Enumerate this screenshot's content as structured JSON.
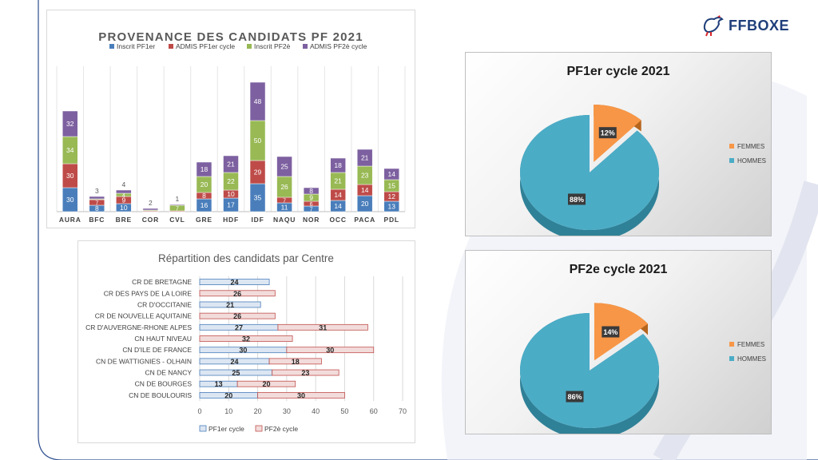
{
  "logo": {
    "text": "FFBOXE"
  },
  "colors": {
    "inscrit_pf1": "#4a7ebb",
    "admis_pf1": "#be4b48",
    "inscrit_pf2": "#98b954",
    "admis_pf2": "#7d60a0",
    "hbar_pf1": "#dce6f2",
    "hbar_pf1_edge": "#4a7ebb",
    "hbar_pf2": "#f2dcdb",
    "hbar_pf2_edge": "#c0504d",
    "femmes": "#f79646",
    "hommes": "#4bacc6"
  },
  "chart_data": [
    {
      "type": "bar",
      "stacked": true,
      "title": "PROVENANCE DES CANDIDATS PF 2021",
      "categories": [
        "AURA",
        "BFC",
        "BRE",
        "COR",
        "CVL",
        "GRE",
        "HDF",
        "IDF",
        "NAQU",
        "NOR",
        "OCC",
        "PACA",
        "PDL"
      ],
      "series": [
        {
          "name": "Inscrit PF1er",
          "values": [
            30,
            8,
            10,
            0,
            0,
            16,
            17,
            35,
            11,
            7,
            14,
            20,
            13
          ],
          "labels": [
            "30",
            "8",
            "10",
            "",
            "",
            "16",
            "17",
            "35",
            "11",
            "7",
            "14",
            "20",
            "13"
          ]
        },
        {
          "name": "ADMIS PF1er cycle",
          "values": [
            30,
            7,
            9,
            1,
            1,
            8,
            10,
            29,
            7,
            6,
            14,
            14,
            12
          ],
          "labels": [
            "30",
            "7",
            "9",
            "",
            "",
            "8",
            "10",
            "29",
            "7",
            "6",
            "14",
            "14",
            "12"
          ]
        },
        {
          "name": "Inscrit PF2è",
          "values": [
            34,
            1,
            4,
            1,
            7,
            20,
            22,
            50,
            26,
            9,
            21,
            23,
            15
          ],
          "labels": [
            "34",
            "",
            "4",
            "",
            "7",
            "20",
            "22",
            "50",
            "26",
            "9",
            "21",
            "23",
            "15"
          ]
        },
        {
          "name": "ADMIS PF2è cycle",
          "values": [
            32,
            3,
            4,
            2,
            1,
            18,
            21,
            48,
            25,
            8,
            18,
            21,
            14
          ],
          "labels": [
            "32",
            "3",
            "4",
            "2",
            "1",
            "18",
            "21",
            "48",
            "25",
            "8",
            "18",
            "21",
            "14"
          ]
        }
      ],
      "legend": "top",
      "grid": true
    },
    {
      "type": "bar",
      "orientation": "horizontal",
      "stacked": true,
      "title": "Répartition des candidats par Centre",
      "categories": [
        "CR DE BRETAGNE",
        "CR DES PAYS DE LA LOIRE",
        "CR D'OCCITANIE",
        "CR DE NOUVELLE AQUITAINE",
        "CR D'AUVERGNE-RHONE ALPES",
        "CN HAUT NIVEAU",
        "CN D'ILE DE FRANCE",
        "CN DE WATTIGNIES - OLHAIN",
        "CN DE NANCY",
        "CN DE BOURGES",
        "CN DE BOULOURIS"
      ],
      "series": [
        {
          "name": "PF1er cycle",
          "values": [
            24,
            0,
            21,
            0,
            27,
            0,
            30,
            24,
            25,
            13,
            20
          ],
          "labels": [
            "24",
            "",
            "21",
            "",
            "27",
            "",
            "30",
            "24",
            "25",
            "13",
            "20"
          ]
        },
        {
          "name": "PF2è cycle",
          "values": [
            0,
            26,
            0,
            26,
            31,
            32,
            30,
            18,
            23,
            20,
            30
          ],
          "labels": [
            "",
            "26",
            "",
            "26",
            "31",
            "32",
            "30",
            "18",
            "23",
            "20",
            "30"
          ]
        }
      ],
      "xticks": [
        "0",
        "10",
        "20",
        "30",
        "40",
        "50",
        "60",
        "70"
      ],
      "xlim": [
        0,
        70
      ],
      "legend": "bottom",
      "grid": true
    },
    {
      "type": "pie",
      "title": "PF1er cycle 2021",
      "categories": [
        "FEMMES",
        "HOMMES"
      ],
      "values": [
        12,
        88
      ],
      "labels": [
        "12%",
        "88%"
      ],
      "legend": "right"
    },
    {
      "type": "pie",
      "title": "PF2e cycle 2021",
      "categories": [
        "FEMMES",
        "HOMMES"
      ],
      "values": [
        14,
        86
      ],
      "labels": [
        "14%",
        "86%"
      ],
      "legend": "right"
    }
  ]
}
